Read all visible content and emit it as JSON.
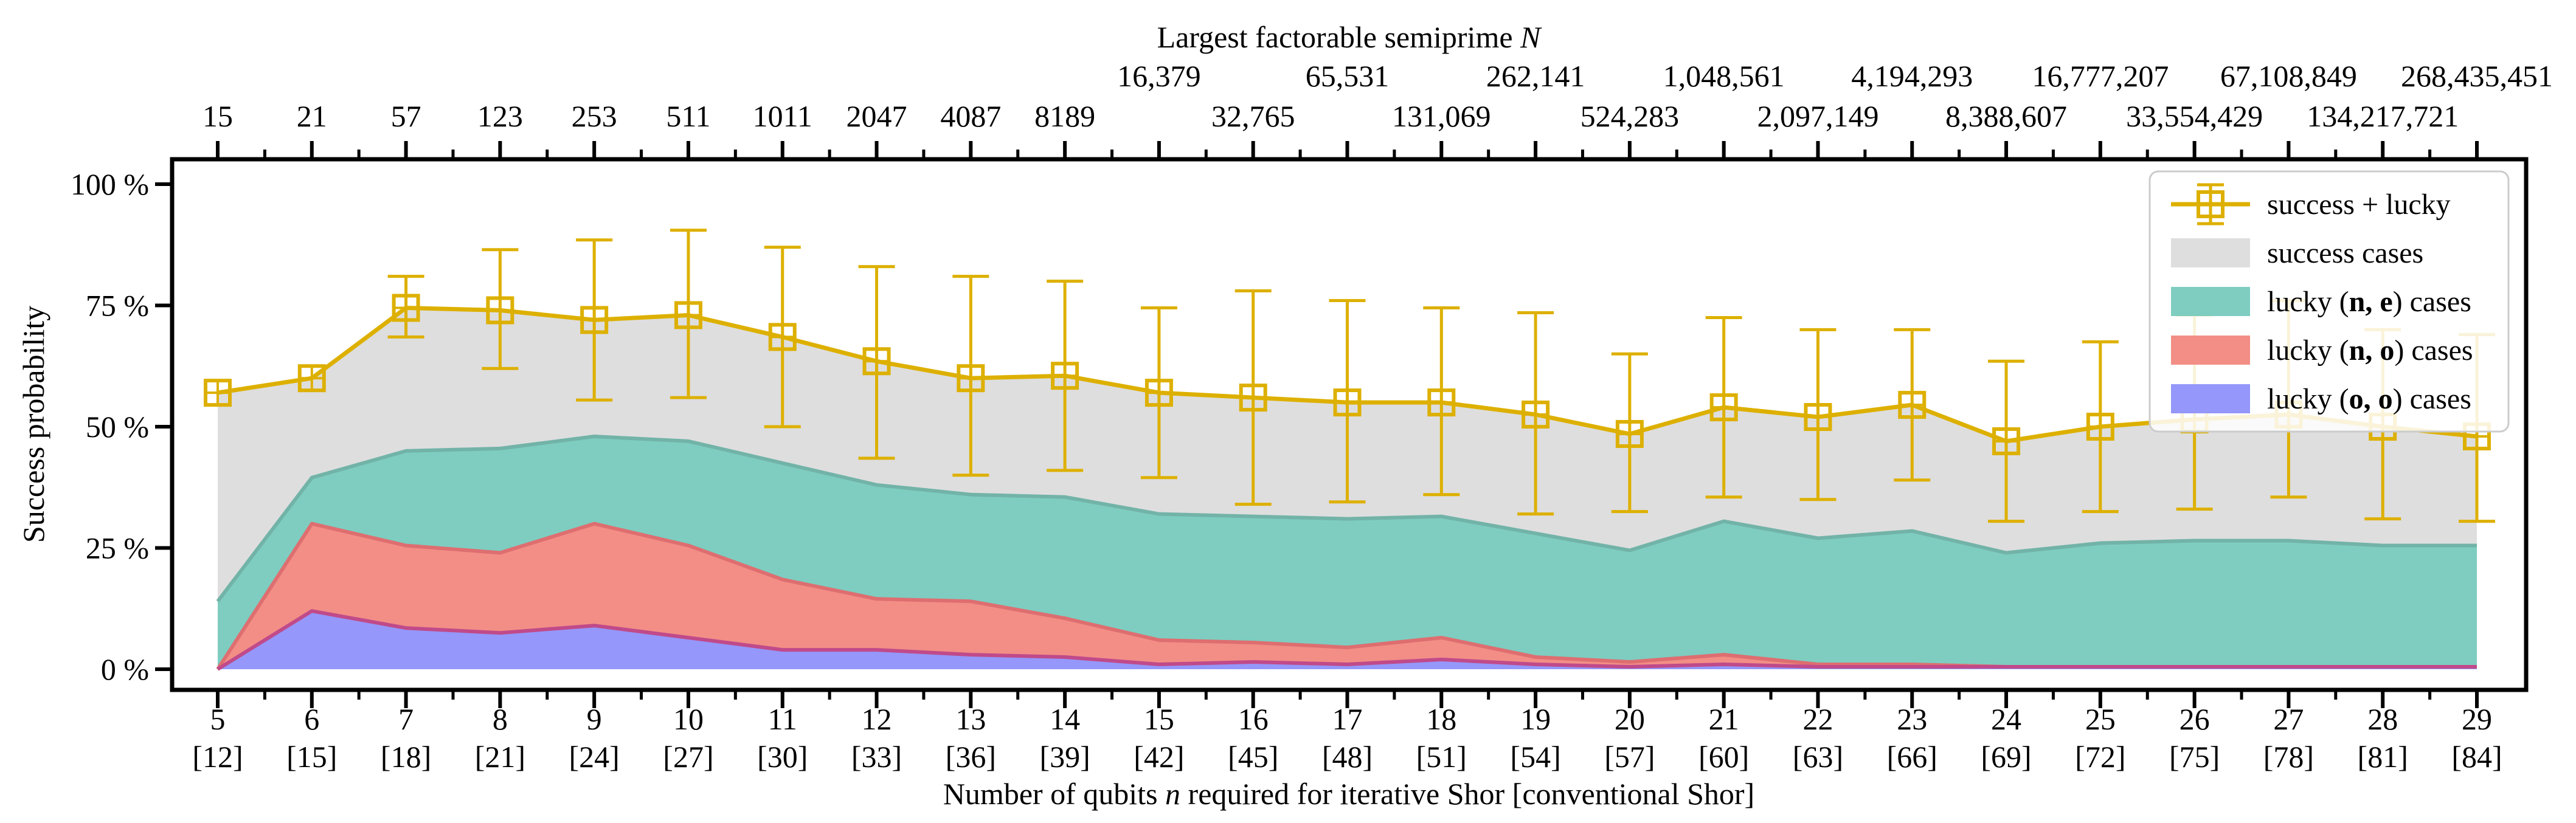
{
  "chart_data": {
    "type": "area",
    "ylabel": "Success probability",
    "xlabel": "Number of qubits n required for iterative Shor [conventional Shor]",
    "xlabel_parts": [
      "Number of qubits ",
      "n",
      " required for iterative Shor [conventional Shor]"
    ],
    "top_title": "Largest factorable semiprime N",
    "top_title_parts": [
      "Largest factorable semiprime ",
      "N"
    ],
    "ylim": [
      0,
      100
    ],
    "yticks": [
      0,
      25,
      50,
      75,
      100
    ],
    "ytick_labels": [
      "0 %",
      "25 %",
      "50 %",
      "75 %",
      "100 %"
    ],
    "x": [
      5,
      6,
      7,
      8,
      9,
      10,
      11,
      12,
      13,
      14,
      15,
      16,
      17,
      18,
      19,
      20,
      21,
      22,
      23,
      24,
      25,
      26,
      27,
      28,
      29
    ],
    "x_conventional_labels": [
      "[12]",
      "[15]",
      "[18]",
      "[21]",
      "[24]",
      "[27]",
      "[30]",
      "[33]",
      "[36]",
      "[39]",
      "[42]",
      "[45]",
      "[48]",
      "[51]",
      "[54]",
      "[57]",
      "[60]",
      "[63]",
      "[66]",
      "[69]",
      "[72]",
      "[75]",
      "[78]",
      "[81]",
      "[84]"
    ],
    "top_labels": [
      "15",
      "21",
      "57",
      "123",
      "253",
      "511",
      "1011",
      "2047",
      "4087",
      "8189",
      "16,379",
      "32,765",
      "65,531",
      "131,069",
      "262,141",
      "524,283",
      "1,048,561",
      "2,097,149",
      "4,194,293",
      "8,388,607",
      "16,777,207",
      "33,554,429",
      "67,108,849",
      "134,217,721",
      "268,435,451"
    ],
    "series": [
      {
        "name": "success + lucky",
        "kind": "line-errorbar",
        "color": "#ddb000",
        "values": [
          57,
          60,
          74.5,
          74,
          72,
          73,
          68.5,
          63.5,
          60,
          60.5,
          57,
          56,
          55,
          55,
          52.5,
          48.5,
          54,
          52,
          54.5,
          47,
          50,
          51.5,
          52.5,
          50,
          48
        ],
        "err_low": [
          null,
          null,
          68.5,
          62,
          55.5,
          56,
          50,
          43.5,
          40,
          41,
          39.5,
          34,
          34.5,
          36,
          32,
          32.5,
          35.5,
          35,
          39,
          30.5,
          32.5,
          33,
          35.5,
          31,
          30.5
        ],
        "err_high": [
          null,
          null,
          81,
          86.5,
          88.5,
          90.5,
          87,
          83,
          81,
          80,
          74.5,
          78,
          76,
          74.5,
          73.5,
          65,
          72.5,
          70,
          70,
          63.5,
          67.5,
          73,
          76,
          70,
          69
        ]
      },
      {
        "name": "success cases",
        "kind": "area",
        "color": "#dedede",
        "values": [
          57,
          60,
          74.5,
          74,
          72,
          73,
          68.5,
          63.5,
          60,
          60.5,
          57,
          56,
          55,
          55,
          52.5,
          48.5,
          54,
          52,
          54.5,
          47,
          50,
          51.5,
          52.5,
          50,
          48
        ]
      },
      {
        "name": "lucky (n, e) cases",
        "kind": "area",
        "color": "#7ecdc0",
        "edge": "#72b3a8",
        "values": [
          14,
          39.5,
          45,
          45.5,
          48,
          47,
          42.5,
          38,
          36,
          35.5,
          32,
          31.5,
          31,
          31.5,
          28,
          24.5,
          30.5,
          27,
          28.5,
          24,
          26,
          26.5,
          26.5,
          25.5,
          25.5
        ]
      },
      {
        "name": "lucky (n, o) cases",
        "kind": "area",
        "color": "#f28e86",
        "edge": "#de6e70",
        "values": [
          0,
          30,
          25.5,
          24,
          30,
          25.5,
          18.5,
          14.5,
          14,
          10.5,
          6,
          5.5,
          4.5,
          6.5,
          2.5,
          1.5,
          3,
          1,
          1,
          0.5,
          0.5,
          0.5,
          0.5,
          0.5,
          0.5
        ]
      },
      {
        "name": "lucky (o, o) cases",
        "kind": "area",
        "color": "#9597fa",
        "edge": "#c04a8a",
        "values": [
          0,
          12,
          8.5,
          7.5,
          9,
          6.5,
          4,
          4,
          3,
          2.5,
          1,
          1.5,
          1,
          2,
          1,
          0.5,
          1,
          0.5,
          0.5,
          0.5,
          0.5,
          0.5,
          0.5,
          0.5,
          0.5
        ]
      }
    ],
    "legend": {
      "position": "top-right",
      "entries": [
        "success + lucky",
        "success cases",
        "lucky (n, e) cases",
        "lucky (n, o) cases",
        "lucky (o, o) cases"
      ],
      "rich_labels": [
        [
          "success + lucky"
        ],
        [
          "success cases"
        ],
        [
          "lucky (",
          "n, e",
          ") cases"
        ],
        [
          "lucky (",
          "n, o",
          ") cases"
        ],
        [
          "lucky (",
          "o, o",
          ") cases"
        ]
      ]
    },
    "grid": false
  }
}
